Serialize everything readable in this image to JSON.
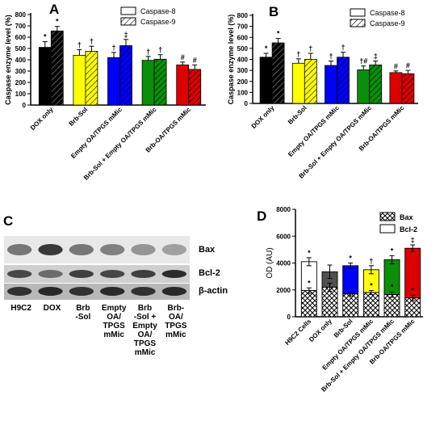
{
  "colors": {
    "black": "#000000",
    "yellow": "#ffff00",
    "blue": "#0000ff",
    "green": "#0a8f0a",
    "red": "#dd0000",
    "white": "#ffffff",
    "dark_gray": "#505050"
  },
  "chart_data": [
    {
      "panel": "A",
      "type": "bar",
      "ylabel": "Caspase enzyme level (%)",
      "ylim": [
        0,
        800
      ],
      "yticks": [
        0,
        100,
        200,
        300,
        400,
        500,
        600,
        700,
        800
      ],
      "legend": {
        "placement": "top-right",
        "entries": [
          "Caspase-8",
          "Caspase-9"
        ]
      },
      "categories": [
        "DOX only",
        "Brb-Sol",
        "Empty OA/TPGS mMic",
        "Brb-Sol + Empty OA/TPGS mMic",
        "Brb-OA/TPGS mMic"
      ],
      "category_colors": [
        "#000000",
        "#ffff00",
        "#0000ff",
        "#0a8f0a",
        "#dd0000"
      ],
      "series": [
        {
          "name": "Caspase-8",
          "pattern": "solid",
          "values": [
            510,
            440,
            420,
            395,
            355
          ],
          "errors": [
            50,
            50,
            45,
            35,
            25
          ],
          "markers": [
            "*",
            "†",
            "†",
            "†",
            "#"
          ]
        },
        {
          "name": "Caspase-9",
          "pattern": "hatched",
          "values": [
            655,
            475,
            525,
            405,
            315
          ],
          "errors": [
            40,
            45,
            55,
            40,
            40
          ],
          "markers": [
            "*",
            "†",
            "‡",
            "†",
            "#"
          ]
        }
      ]
    },
    {
      "panel": "B",
      "type": "bar",
      "ylabel": "Caspase enzyme level (%)",
      "ylim": [
        0,
        800
      ],
      "yticks": [
        0,
        100,
        200,
        300,
        400,
        500,
        600,
        700,
        800
      ],
      "legend": {
        "placement": "top-right",
        "entries": [
          "Caspase-8",
          "Caspase-9"
        ]
      },
      "categories": [
        "DOX only",
        "Brb-Sol",
        "Empty OA/TPGS mMic",
        "Brb-Sol + Empty OA/TPGS mMic",
        "Brb-OA/TPGS mMic"
      ],
      "category_colors": [
        "#000000",
        "#ffff00",
        "#0000ff",
        "#0a8f0a",
        "#dd0000"
      ],
      "series": [
        {
          "name": "Caspase-8",
          "pattern": "solid",
          "values": [
            420,
            365,
            345,
            305,
            280
          ],
          "errors": [
            35,
            40,
            40,
            35,
            15
          ],
          "markers": [
            "*",
            "†",
            "†",
            "†#",
            "#"
          ]
        },
        {
          "name": "Caspase-9",
          "pattern": "hatched",
          "values": [
            550,
            400,
            420,
            350,
            270
          ],
          "errors": [
            40,
            55,
            45,
            35,
            30
          ],
          "markers": [
            "*",
            "†",
            "†",
            "‡",
            "#"
          ]
        }
      ]
    },
    {
      "panel": "D",
      "type": "bar",
      "stacked": true,
      "ylabel": "OD (AU)",
      "ylim": [
        0,
        8000
      ],
      "yticks": [
        0,
        2000,
        4000,
        6000,
        8000
      ],
      "legend": {
        "placement": "top-right",
        "entries": [
          "Bax",
          "Bcl-2"
        ]
      },
      "categories": [
        "H9C2 Cells",
        "DOX only",
        "Brb-Sol",
        "Empty OA/TPGS mMic",
        "Brb-Sol + Empty OA/TPGS mMic",
        "Brb-OA/TPGS mMic"
      ],
      "category_colors": [
        "#ffffff",
        "#505050",
        "#0000ff",
        "#ffff00",
        "#0a8f0a",
        "#dd0000"
      ],
      "series": [
        {
          "name": "Bax",
          "pattern": "crosshatch",
          "values": [
            1950,
            2200,
            1700,
            1800,
            1650,
            1400
          ],
          "errors": [
            200,
            300,
            150,
            150,
            200,
            200
          ],
          "markers": [
            "*",
            "",
            "",
            "*",
            "*",
            "*"
          ]
        },
        {
          "name": "Bcl-2",
          "pattern": "solid",
          "values": [
            2150,
            1150,
            2100,
            1700,
            2600,
            3700
          ],
          "totals": [
            4100,
            3350,
            3800,
            3500,
            4250,
            5100
          ],
          "errors": [
            300,
            500,
            200,
            300,
            300,
            250
          ],
          "markers": [
            "*",
            "",
            "*",
            "†",
            "*",
            "‡"
          ]
        }
      ]
    }
  ],
  "panel_labels": {
    "a": "A",
    "b": "B",
    "c": "C",
    "d": "D"
  },
  "blot": {
    "bands": [
      "Bax",
      "Bcl-2",
      "β-actin"
    ],
    "lanes": [
      "H9C2",
      "DOX",
      "Brb\n-Sol",
      "Empty\nOA/\nTPGS\nmMic",
      "Brb\n-Sol +\nEmpty\nOA/\nTPGS\nmMic",
      "Brb-\nOA/\nTPGS\nmMic"
    ]
  }
}
